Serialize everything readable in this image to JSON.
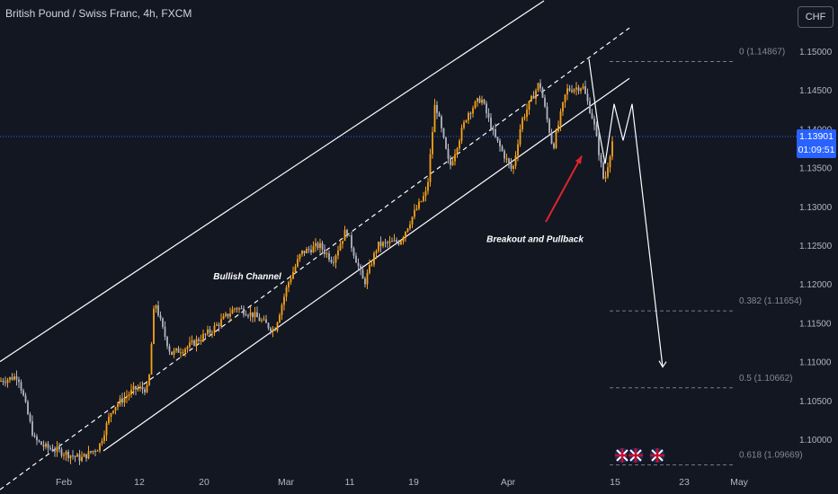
{
  "header": {
    "title": "British Pound / Swiss Franc, 4h, FXCM",
    "currency_button": "CHF"
  },
  "price_badge": {
    "price": "1.13901",
    "countdown": "01:09:51"
  },
  "chart_data": {
    "type": "candlestick",
    "title": "British Pound / Swiss Franc, 4h, FXCM",
    "y_axis": {
      "ticks": [
        "1.15000",
        "1.14500",
        "1.14000",
        "1.13500",
        "1.13000",
        "1.12500",
        "1.12000",
        "1.11500",
        "1.11000",
        "1.10500",
        "1.10000"
      ],
      "tick_values": [
        1.15,
        1.145,
        1.14,
        1.135,
        1.13,
        1.125,
        1.12,
        1.115,
        1.11,
        1.105,
        1.1
      ],
      "ylim": [
        1.0965,
        1.1545
      ]
    },
    "x_axis": {
      "ticks": [
        "Feb",
        "12",
        "20",
        "Mar",
        "11",
        "19",
        "Apr",
        "15",
        "23",
        "May"
      ]
    },
    "current_price": 1.13901,
    "bullish_up_color": "#f7a21b",
    "bearish_color": "#b2b5be",
    "key_points": [
      {
        "t": 0,
        "y": 1.1075
      },
      {
        "t": 10,
        "y": 1.1078
      },
      {
        "t": 20,
        "y": 1.1082
      },
      {
        "t": 38,
        "y": 1.1
      },
      {
        "t": 50,
        "y": 1.099
      },
      {
        "t": 65,
        "y": 1.0985
      },
      {
        "t": 90,
        "y": 1.0975
      },
      {
        "t": 110,
        "y": 1.099
      },
      {
        "t": 125,
        "y": 1.104
      },
      {
        "t": 150,
        "y": 1.1065
      },
      {
        "t": 165,
        "y": 1.1065
      },
      {
        "t": 172,
        "y": 1.118
      },
      {
        "t": 180,
        "y": 1.1145
      },
      {
        "t": 190,
        "y": 1.111
      },
      {
        "t": 210,
        "y": 1.112
      },
      {
        "t": 235,
        "y": 1.114
      },
      {
        "t": 262,
        "y": 1.117
      },
      {
        "t": 282,
        "y": 1.116
      },
      {
        "t": 305,
        "y": 1.114
      },
      {
        "t": 320,
        "y": 1.12
      },
      {
        "t": 335,
        "y": 1.124
      },
      {
        "t": 355,
        "y": 1.125
      },
      {
        "t": 370,
        "y": 1.123
      },
      {
        "t": 385,
        "y": 1.127
      },
      {
        "t": 405,
        "y": 1.12
      },
      {
        "t": 420,
        "y": 1.125
      },
      {
        "t": 445,
        "y": 1.1255
      },
      {
        "t": 460,
        "y": 1.129
      },
      {
        "t": 475,
        "y": 1.132
      },
      {
        "t": 484,
        "y": 1.1435
      },
      {
        "t": 500,
        "y": 1.135
      },
      {
        "t": 520,
        "y": 1.142
      },
      {
        "t": 535,
        "y": 1.144
      },
      {
        "t": 550,
        "y": 1.139
      },
      {
        "t": 570,
        "y": 1.1345
      },
      {
        "t": 580,
        "y": 1.141
      },
      {
        "t": 600,
        "y": 1.146
      },
      {
        "t": 615,
        "y": 1.1375
      },
      {
        "t": 630,
        "y": 1.145
      },
      {
        "t": 648,
        "y": 1.1455
      },
      {
        "t": 660,
        "y": 1.141
      },
      {
        "t": 672,
        "y": 1.133
      },
      {
        "t": 682,
        "y": 1.139
      }
    ],
    "lines": {
      "channel_upper": [
        [
          0,
          1.11
        ],
        [
          605,
          1.1565
        ]
      ],
      "channel_mid_dashed": [
        [
          0,
          1.0935
        ],
        [
          700,
          1.153
        ]
      ],
      "channel_lower": [
        [
          115,
          1.0985
        ],
        [
          700,
          1.1465
        ]
      ],
      "projected_path": [
        [
          655,
          1.149
        ],
        [
          665,
          1.1405
        ],
        [
          673,
          1.1355
        ],
        [
          683,
          1.1432
        ],
        [
          693,
          1.1385
        ],
        [
          703,
          1.1432
        ],
        [
          737,
          1.1093
        ]
      ]
    },
    "fibonacci": [
      {
        "label": "0 (1.14867)",
        "value": 1.14867
      },
      {
        "label": "0.382 (1.11654)",
        "value": 1.11654
      },
      {
        "label": "0.5 (1.10662)",
        "value": 1.10662
      },
      {
        "label": "0.618 (1.09669)",
        "value": 1.09669
      }
    ],
    "annotations": [
      {
        "text": "Bullish Channel",
        "x": 275,
        "y": 1.1206
      },
      {
        "text": "Breakout and Pullback",
        "x": 595,
        "y": 1.1254
      }
    ],
    "arrow": {
      "from": [
        607,
        1.128
      ],
      "to": [
        647,
        1.1365
      ],
      "color": "#e0262b"
    },
    "events": [
      "uk-flag-icon",
      "uk-flag-icon",
      "uk-flag-icon"
    ]
  }
}
